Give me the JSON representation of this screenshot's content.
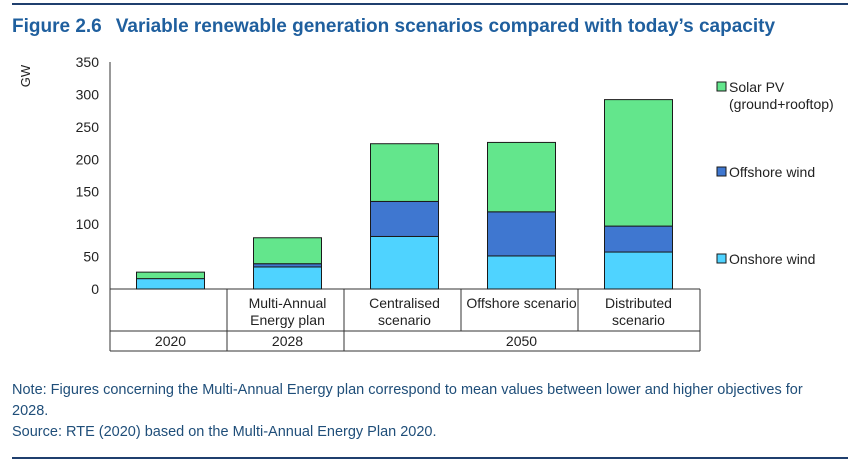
{
  "figure": {
    "number": "Figure 2.6",
    "title": "Variable renewable generation scenarios compared with today’s capacity"
  },
  "notes": {
    "note": "Note: Figures concerning the Multi-Annual Energy plan correspond to mean values between lower and higher objectives for 2028.",
    "source": "Source: RTE (2020) based on the Multi-Annual Energy Plan 2020."
  },
  "colors": {
    "solar": "#63e68c",
    "offshore": "#3f77d0",
    "onshore": "#4fd3ff",
    "stroke": "#1a1a1a",
    "title": "#1f5f9e",
    "rule": "#1f3f6e"
  },
  "chart_data": {
    "type": "bar",
    "stacked": true,
    "ylabel": "GW",
    "ylim": [
      0,
      350
    ],
    "yticks": [
      0,
      50,
      100,
      150,
      200,
      250,
      300,
      350
    ],
    "grid": false,
    "legend_position": "right",
    "categories": [
      "",
      "Multi-Annual Energy plan",
      "Centralised scenario",
      "Offshore scenario",
      "Distributed scenario"
    ],
    "category_lines": [
      [
        ""
      ],
      [
        "Multi-Annual",
        "Energy plan"
      ],
      [
        "Centralised",
        "scenario"
      ],
      [
        "Offshore scenario"
      ],
      [
        "Distributed",
        "scenario"
      ]
    ],
    "groups": [
      {
        "label": "2020",
        "span": [
          0,
          0
        ]
      },
      {
        "label": "2028",
        "span": [
          1,
          1
        ]
      },
      {
        "label": "2050",
        "span": [
          2,
          4
        ]
      }
    ],
    "series": [
      {
        "name": "Onshore wind",
        "legend_lines": [
          "Onshore wind"
        ],
        "color_key": "onshore",
        "values": [
          16,
          34,
          81,
          51,
          57
        ]
      },
      {
        "name": "Offshore wind",
        "legend_lines": [
          "Offshore wind"
        ],
        "color_key": "offshore",
        "values": [
          0,
          5,
          54,
          68,
          40
        ]
      },
      {
        "name": "Solar PV (ground+rooftop)",
        "legend_lines": [
          "Solar PV",
          "(ground+rooftop)"
        ],
        "color_key": "solar",
        "values": [
          10,
          40,
          89,
          107,
          195
        ]
      }
    ]
  }
}
